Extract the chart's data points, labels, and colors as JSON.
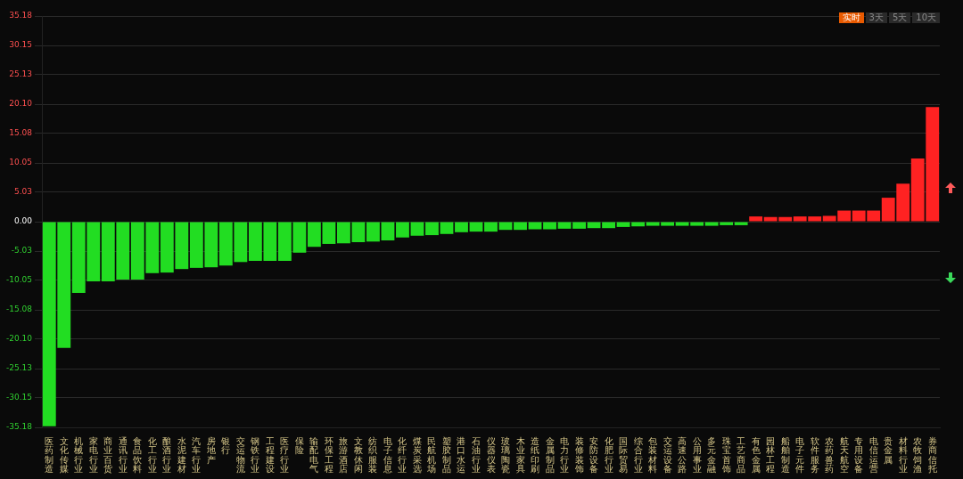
{
  "chart_data": {
    "type": "bar",
    "categories": [
      "医药制造",
      "文化传媒",
      "机械行业",
      "家电行业",
      "商业百货",
      "通讯行业",
      "食品饮料",
      "化工行业",
      "酿酒行业",
      "水泥建材",
      "汽车行业",
      "房地产",
      "银行",
      "交运物流",
      "钢铁行业",
      "工程建设",
      "医疗行业",
      "保险",
      "输配电气",
      "环保工程",
      "旅游酒店",
      "文教休闲",
      "纺织服装",
      "电子信息",
      "化纤行业",
      "煤炭采选",
      "民航机场",
      "塑胶制品",
      "港口水运",
      "石油行业",
      "仪器仪表",
      "玻璃陶瓷",
      "木业家具",
      "造纸印刷",
      "金属制品",
      "电力行业",
      "装修装饰",
      "安防设备",
      "化肥行业",
      "国际贸易",
      "综合行业",
      "包装材料",
      "交运设备",
      "高速公路",
      "公用事业",
      "多元金融",
      "珠宝首饰",
      "工艺商品",
      "有色金属",
      "园林工程",
      "船舶制造",
      "电子元件",
      "软件服务",
      "农药兽药",
      "航天航空",
      "专用设备",
      "电信运营",
      "贵金属",
      "材料行业",
      "农牧饲渔",
      "券商信托"
    ],
    "values": [
      -35.0,
      -21.6,
      -12.2,
      -10.2,
      -10.2,
      -9.9,
      -9.9,
      -8.8,
      -8.7,
      -8.1,
      -7.9,
      -7.8,
      -7.5,
      -6.9,
      -6.7,
      -6.7,
      -6.7,
      -5.3,
      -4.3,
      -3.8,
      -3.7,
      -3.5,
      -3.4,
      -3.2,
      -2.7,
      -2.4,
      -2.3,
      -2.1,
      -1.8,
      -1.7,
      -1.7,
      -1.4,
      -1.4,
      -1.3,
      -1.3,
      -1.2,
      -1.2,
      -1.1,
      -1.1,
      -0.9,
      -0.8,
      -0.7,
      -0.7,
      -0.7,
      -0.7,
      -0.7,
      -0.6,
      -0.6,
      0.9,
      0.8,
      0.8,
      0.9,
      0.9,
      1.0,
      1.9,
      1.9,
      1.9,
      4.1,
      6.5,
      10.8,
      19.6
    ],
    "colors": [
      "#22dd22",
      "#22dd22",
      "#22dd22",
      "#22dd22",
      "#22dd22",
      "#22dd22",
      "#22dd22",
      "#22dd22",
      "#22dd22",
      "#22dd22",
      "#22dd22",
      "#22dd22",
      "#22dd22",
      "#22dd22",
      "#22dd22",
      "#22dd22",
      "#22dd22",
      "#22dd22",
      "#22dd22",
      "#22dd22",
      "#22dd22",
      "#22dd22",
      "#22dd22",
      "#22dd22",
      "#22dd22",
      "#22dd22",
      "#22dd22",
      "#22dd22",
      "#22dd22",
      "#22dd22",
      "#22dd22",
      "#22dd22",
      "#22dd22",
      "#22dd22",
      "#22dd22",
      "#22dd22",
      "#22dd22",
      "#22dd22",
      "#22dd22",
      "#22dd22",
      "#22dd22",
      "#22dd22",
      "#22dd22",
      "#22dd22",
      "#22dd22",
      "#22dd22",
      "#22dd22",
      "#22dd22",
      "#ff2222",
      "#ff2222",
      "#ff2222",
      "#ff2222",
      "#ff2222",
      "#ff2222",
      "#ff2222",
      "#ff2222",
      "#ff2222",
      "#ff2222",
      "#ff2222",
      "#ff2222",
      "#ff2222"
    ],
    "ylim": [
      -35.18,
      35.18
    ],
    "yticks": [
      -35.18,
      -30.15,
      -25.13,
      {
        "value": -20.1,
        "label": "-20.10"
      },
      {
        "value": -15.08,
        "label": "-15.08"
      },
      -10.05,
      -5.03,
      {
        "value": 0,
        "label": "0.00"
      },
      5.03,
      10.05,
      {
        "value": 15.08,
        "label": "15.08"
      },
      {
        "value": 20.1,
        "label": "20.10"
      },
      25.13,
      30.15,
      35.18
    ],
    "grid": "y",
    "legend": false,
    "annotations": [
      "实时",
      "3天",
      "5天",
      "10天"
    ]
  }
}
